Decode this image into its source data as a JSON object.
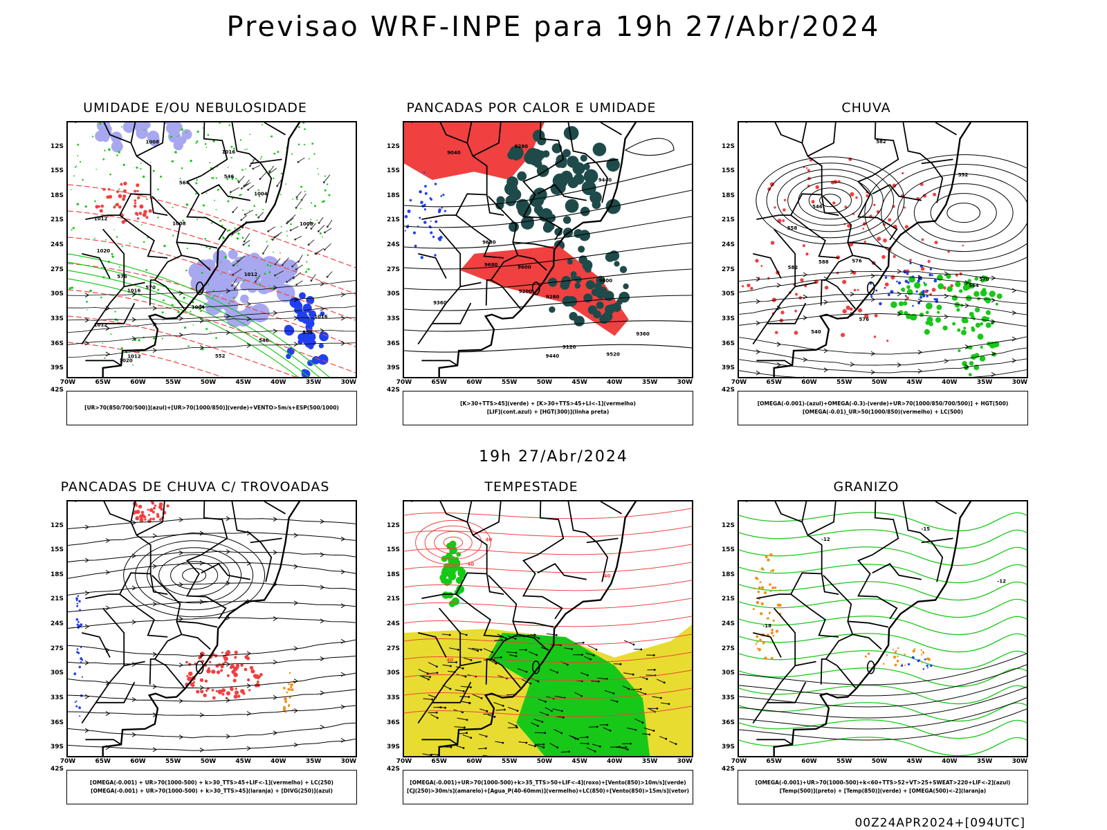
{
  "title": "Previsao WRF-INPE  para 19h 27/Abr/2024",
  "mid_title": "19h 27/Abr/2024",
  "footer": "00Z24APR2024+[094UTC]",
  "lat_labels": [
    "12S",
    "15S",
    "18S",
    "21S",
    "24S",
    "27S",
    "30S",
    "33S",
    "36S",
    "39S",
    "42S"
  ],
  "lon_labels": [
    "70W",
    "65W",
    "60W",
    "55W",
    "50W",
    "45W",
    "40W",
    "35W",
    "30W"
  ],
  "colors": {
    "red": "#f04040",
    "green": "#18c818",
    "blue": "#2040f0",
    "lavender": "#a8a8f0",
    "darkteal": "#1f4a4a",
    "yellow": "#e8dc30",
    "orange": "#f0901a",
    "black": "#000000"
  },
  "panels": [
    {
      "title": "UMIDADE E/OU NEBULOSIDADE",
      "legend": [
        "[UR>70(850/700/500)](azul)+[UR>70(1000/850)](verde)+VENTO>5m/s+ESP(500/1000)"
      ],
      "contour_labels": [
        "1008",
        "1008",
        "1012",
        "1016",
        "1016",
        "1004",
        "1012",
        "1008",
        "1012",
        "1020",
        "1004",
        "576",
        "570",
        "564",
        "558",
        "552",
        "546",
        "546",
        "1016",
        "1012",
        "1020"
      ]
    },
    {
      "title": "PANCADAS POR CALOR E UMIDADE",
      "legend": [
        "[K>30+TTS>45](verde) + [K>30+TTS>45+LI<-1](vermelho)",
        "[LIF](cont.azul) + [HGT(300)](linha preta)"
      ],
      "contour_labels": [
        "9680",
        "9680",
        "9600",
        "9600",
        "9520",
        "9440",
        "9360",
        "9280",
        "9200",
        "9120",
        "9040",
        "9440",
        "9360",
        "9280"
      ]
    },
    {
      "title": "CHUVA",
      "legend": [
        "[OMEGA(-0.001)-(azul)+OMEGA(-0.3)-(verde)+UR>70(1000/850/700/500)] + HGT(500)",
        "[OMEGA(-0.01)_UR>50(1000/850)(vermelho) + LC(500)"
      ],
      "contour_labels": [
        "588",
        "582",
        "576",
        "570",
        "564",
        "558",
        "552",
        "546",
        "540",
        "582",
        "576"
      ]
    },
    {
      "title": "PANCADAS DE CHUVA C/ TROVOADAS",
      "legend": [
        "[OMEGA(-0.001) + UR>70(1000-500) + k>30_TTS>45+LIF<-1](vermelho) + LC(250)",
        "[OMEGA(-0.001) + UR>70(1000-500) + k>30_TTS>45](laranja) + [DIVG(250)](azul)"
      ],
      "contour_labels": []
    },
    {
      "title": "TEMPESTADE",
      "legend": [
        "[OMEGA(-0.001)+UR>70(1000-500)+k>35_TTS>50+LIF<-4](roxo)+[Vento(850)>10m/s](verde)",
        "[CJ(250)>30m/s](amarelo)+[Agua_P(40-60mm)](vermelho)+LC(850)+[Vento(850)>15m/s](vetor)"
      ],
      "contour_labels": [
        "40",
        "40",
        "40",
        "40"
      ]
    },
    {
      "title": "GRANIZO",
      "legend": [
        "[OMEGA(-0.001)+UR>70(1000-500)+k<60+TTS>52+VT>25+SWEAT>220+LIF<-2](azul)",
        "[Temp(500)](preto) + [Temp(850)](verde) + [OMEGA(500)<-2](laranja)"
      ],
      "contour_labels": [
        "-12",
        "-15",
        "-18",
        "-12"
      ]
    }
  ]
}
